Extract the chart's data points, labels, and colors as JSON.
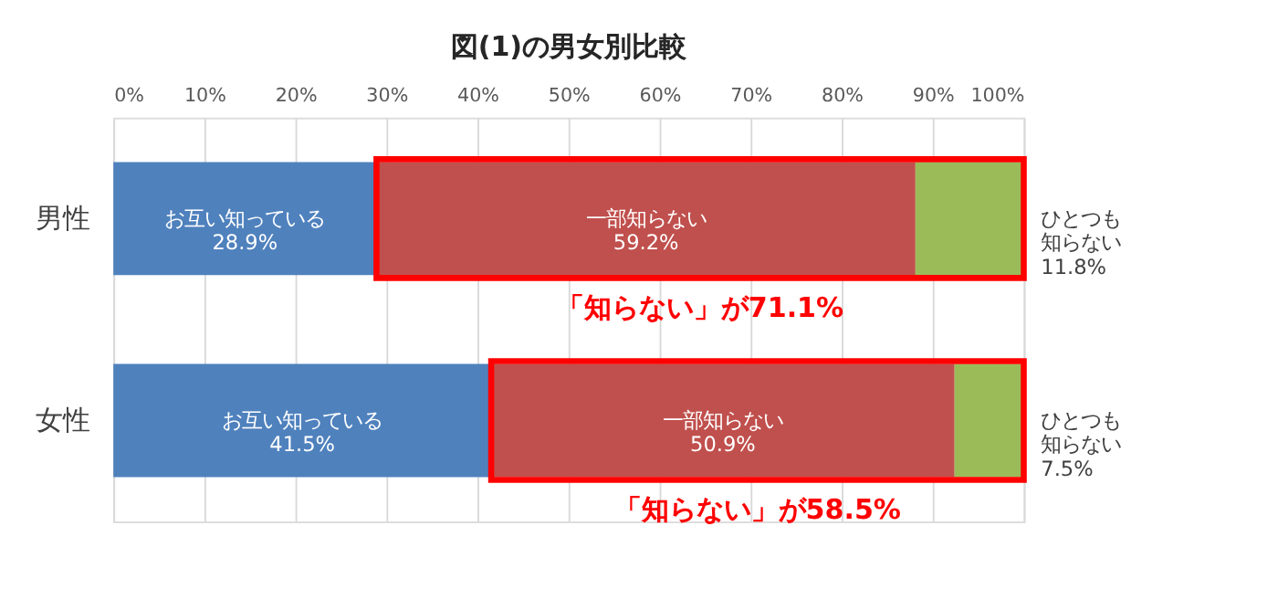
{
  "chart_data": {
    "type": "bar",
    "orientation": "horizontal",
    "stacked": true,
    "title": "図(1)の男女別比較",
    "categories": [
      "男性",
      "女性"
    ],
    "series": [
      {
        "name": "お互い知っている",
        "color": "#4f81bd",
        "values": [
          28.9,
          41.5
        ],
        "value_labels": [
          "28.9%",
          "41.5%"
        ]
      },
      {
        "name": "一部知らない",
        "color": "#c0504d",
        "values": [
          59.2,
          50.9
        ],
        "value_labels": [
          "59.2%",
          "50.9%"
        ]
      },
      {
        "name": "ひとつも知らない",
        "color": "#9bbb59",
        "values": [
          11.8,
          7.5
        ],
        "value_labels": [
          "11.8%",
          "7.5%"
        ]
      }
    ],
    "xlim": [
      0,
      100
    ],
    "xticks": [
      {
        "value": 0,
        "label": "0%"
      },
      {
        "value": 10,
        "label": "10%"
      },
      {
        "value": 20,
        "label": "20%"
      },
      {
        "value": 30,
        "label": "30%"
      },
      {
        "value": 40,
        "label": "40%"
      },
      {
        "value": 50,
        "label": "50%"
      },
      {
        "value": 60,
        "label": "60%"
      },
      {
        "value": 70,
        "label": "70%"
      },
      {
        "value": 80,
        "label": "80%"
      },
      {
        "value": 90,
        "label": "90%"
      },
      {
        "value": 100,
        "label": "100%"
      }
    ],
    "grid": "x",
    "legend": false,
    "annotations": [
      "「知らない」が71.1%",
      "「知らない」が58.5%"
    ]
  }
}
